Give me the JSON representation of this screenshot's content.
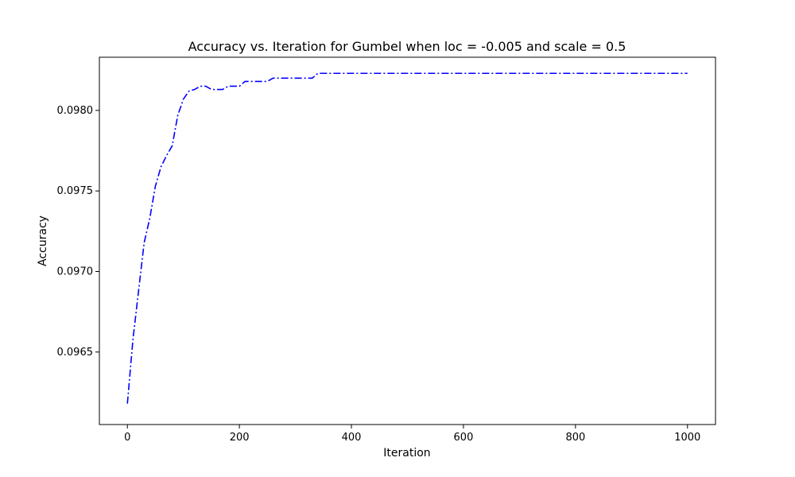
{
  "chart_data": {
    "type": "line",
    "title": "Accuracy vs. Iteration for Gumbel when loc = -0.005 and scale = 0.5",
    "xlabel": "Iteration",
    "ylabel": "Accuracy",
    "xlim": [
      -50,
      1050
    ],
    "ylim": [
      0.09605,
      0.09833
    ],
    "xticks": [
      0,
      200,
      400,
      600,
      800,
      1000
    ],
    "xtick_labels": [
      "0",
      "200",
      "400",
      "600",
      "800",
      "1000"
    ],
    "yticks": [
      0.0965,
      0.097,
      0.0975,
      0.098
    ],
    "ytick_labels": [
      "0.0965",
      "0.0970",
      "0.0975",
      "0.0980"
    ],
    "grid": false,
    "series": [
      {
        "color": "#0000ff",
        "linestyle": "dashdot",
        "x": [
          0,
          10,
          20,
          30,
          40,
          50,
          60,
          70,
          80,
          90,
          100,
          110,
          120,
          130,
          140,
          150,
          160,
          170,
          180,
          190,
          200,
          210,
          220,
          230,
          240,
          250,
          260,
          270,
          280,
          290,
          300,
          310,
          320,
          330,
          340,
          350,
          360,
          380,
          400,
          450,
          500,
          600,
          700,
          800,
          900,
          1000
        ],
        "y": [
          0.09618,
          0.09658,
          0.09688,
          0.09718,
          0.09733,
          0.09753,
          0.09765,
          0.09772,
          0.09778,
          0.09797,
          0.09807,
          0.09812,
          0.09813,
          0.09815,
          0.09815,
          0.09813,
          0.09813,
          0.09813,
          0.09815,
          0.09815,
          0.09815,
          0.09818,
          0.09818,
          0.09818,
          0.09818,
          0.09818,
          0.0982,
          0.0982,
          0.0982,
          0.0982,
          0.0982,
          0.0982,
          0.0982,
          0.0982,
          0.09823,
          0.09823,
          0.09823,
          0.09823,
          0.09823,
          0.09823,
          0.09823,
          0.09823,
          0.09823,
          0.09823,
          0.09823,
          0.09823
        ]
      }
    ]
  }
}
